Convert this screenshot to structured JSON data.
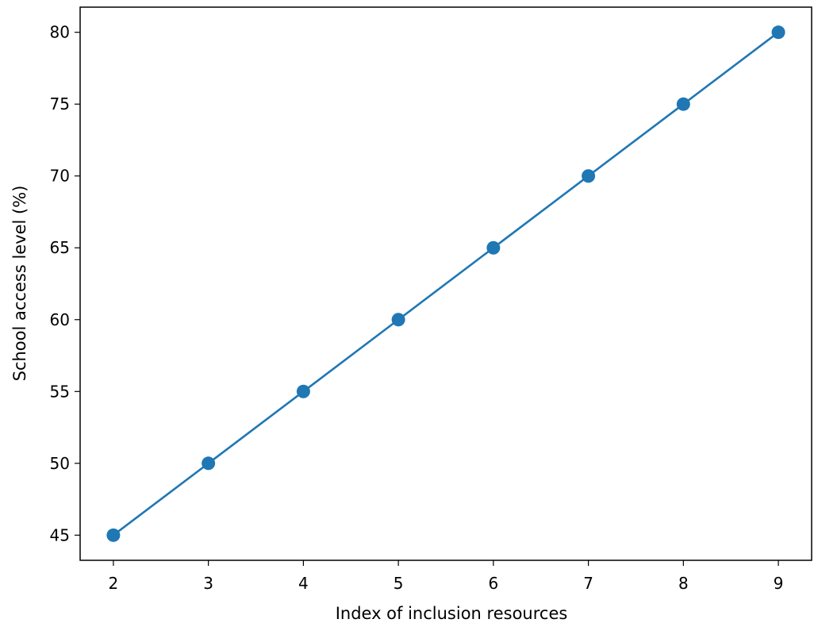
{
  "chart_data": {
    "type": "line",
    "title": "",
    "xlabel": "Index of inclusion resources",
    "ylabel": "School access level (%)",
    "x": [
      2,
      3,
      4,
      5,
      6,
      7,
      8,
      9
    ],
    "series": [
      {
        "values": [
          45,
          50,
          55,
          60,
          65,
          70,
          75,
          80
        ],
        "color": "#1f77b4",
        "marker": "circle"
      }
    ],
    "xlim": [
      1.65,
      9.35
    ],
    "ylim": [
      43.25,
      81.75
    ],
    "xticks": [
      2,
      3,
      4,
      5,
      6,
      7,
      8,
      9
    ],
    "yticks": [
      45,
      50,
      55,
      60,
      65,
      70,
      75,
      80
    ],
    "grid": false,
    "legend": "none"
  }
}
